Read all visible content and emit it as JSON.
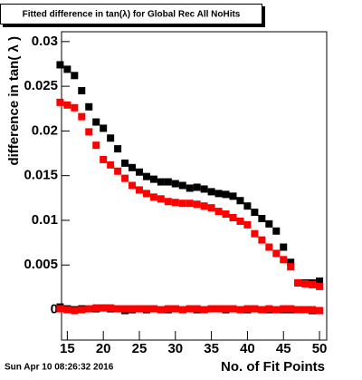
{
  "chart_data": {
    "type": "scatter",
    "title": "Fitted difference in tan(λ) for Global Rec All NoHits",
    "x_label": "No. of Fit Points",
    "y_label": "difference in tan( λ )",
    "timestamp": "Sun Apr 10 08:26:32 2016",
    "x": [
      14,
      15,
      16,
      17,
      18,
      19,
      20,
      21,
      22,
      23,
      24,
      25,
      26,
      27,
      28,
      29,
      30,
      31,
      32,
      33,
      34,
      35,
      36,
      37,
      38,
      39,
      40,
      41,
      42,
      43,
      44,
      45,
      46,
      47,
      48,
      49,
      50
    ],
    "series": [
      {
        "color": "#000000",
        "values": [
          0.0274,
          0.0269,
          0.0262,
          0.0245,
          0.0227,
          0.021,
          0.0203,
          0.0192,
          0.018,
          0.0164,
          0.0159,
          0.0154,
          0.0149,
          0.0146,
          0.0143,
          0.0143,
          0.0141,
          0.0139,
          0.0136,
          0.0137,
          0.0135,
          0.0132,
          0.013,
          0.0129,
          0.0127,
          0.0122,
          0.0116,
          0.0109,
          0.0102,
          0.0096,
          0.0088,
          0.007,
          0.0053,
          0.003,
          0.003,
          0.003,
          0.0032
        ]
      },
      {
        "color": "#ff0000",
        "values": [
          0.0232,
          0.0229,
          0.0226,
          0.0216,
          0.0199,
          0.0184,
          0.0168,
          0.0162,
          0.0155,
          0.0147,
          0.0139,
          0.0134,
          0.013,
          0.0126,
          0.0124,
          0.0121,
          0.012,
          0.0119,
          0.0119,
          0.0118,
          0.0116,
          0.0114,
          0.011,
          0.0107,
          0.0103,
          0.0099,
          0.0095,
          0.0085,
          0.0078,
          0.007,
          0.0063,
          0.0056,
          0.0048,
          0.003,
          0.0029,
          0.0028,
          0.0026
        ]
      },
      {
        "color": "#000000",
        "values": [
          0.0003,
          0.0001,
          0.0,
          0.0001,
          0.0001,
          0.0001,
          0.0002,
          0.0001,
          0.0001,
          -0.0001,
          0.0,
          0.0001,
          0.0,
          0.0001,
          0.0,
          0.0,
          0.0001,
          0.0,
          0.0001,
          0.0,
          0.0,
          0.0001,
          0.0001,
          0.0,
          0.0001,
          0.0,
          0.0,
          0.0001,
          0.0,
          0.0,
          0.0,
          0.0,
          0.0,
          0.0,
          0.0,
          -0.0001,
          -0.0001
        ]
      },
      {
        "color": "#ff0000",
        "values": [
          0.0001,
          0.0,
          -0.0001,
          0.0,
          0.0001,
          0.0002,
          0.0002,
          0.0002,
          0.0001,
          0.0001,
          0.0001,
          0.0001,
          0.0001,
          0.0001,
          0.0,
          0.0001,
          0.0001,
          0.0,
          0.0001,
          0.0001,
          0.0,
          0.0001,
          0.0001,
          0.0001,
          0.0001,
          0.0,
          0.0001,
          0.0001,
          0.0,
          0.0001,
          0.0,
          0.0001,
          0.0001,
          0.0,
          0.0,
          0.0,
          -0.0001
        ]
      }
    ],
    "xlim": [
      14.2,
      51
    ],
    "ylim": [
      -0.0034,
      0.0311
    ],
    "xticks": [
      15,
      20,
      25,
      30,
      35,
      40,
      45,
      50
    ],
    "yticks": [
      0,
      0.005,
      0.01,
      0.015,
      0.02,
      0.025,
      0.03
    ]
  }
}
